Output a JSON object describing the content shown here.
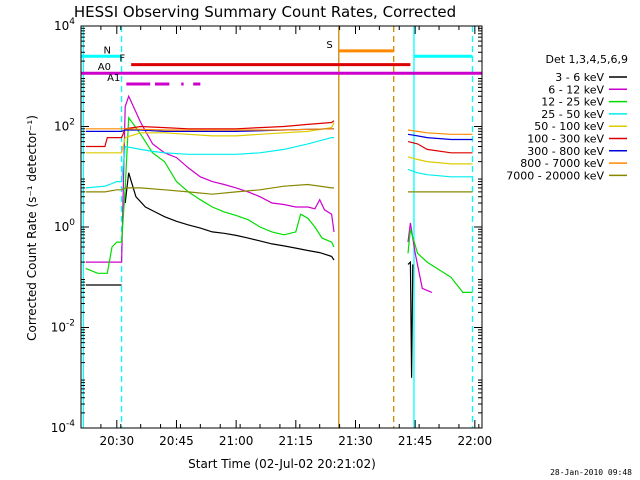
{
  "chart_data": {
    "type": "line",
    "title": "HESSI Observing Summary Count Rates, Corrected",
    "xlabel": "Start Time (02-Jul-02 20:21:02)",
    "ylabel": "Corrected Count Rate (s⁻¹ detector⁻¹)",
    "yscale": "log",
    "ylim": [
      0.0001,
      10000
    ],
    "xlim_minutes": [
      20.5,
      20.5,
      20.5,
      22.0
    ],
    "xlim": [
      20.35,
      22.03
    ],
    "x_unit": "hours UT",
    "x_ticks": [
      {
        "v": 20.5,
        "label": "20:30"
      },
      {
        "v": 20.75,
        "label": "20:45"
      },
      {
        "v": 21.0,
        "label": "21:00"
      },
      {
        "v": 21.25,
        "label": "21:15"
      },
      {
        "v": 21.5,
        "label": "21:30"
      },
      {
        "v": 21.75,
        "label": "21:45"
      },
      {
        "v": 22.0,
        "label": "22:00"
      }
    ],
    "y_ticks": [
      {
        "v": 0.0001,
        "base": "10",
        "exp": "-4"
      },
      {
        "v": 0.01,
        "base": "10",
        "exp": "-2"
      },
      {
        "v": 1,
        "base": "10",
        "exp": "0"
      },
      {
        "v": 100,
        "base": "10",
        "exp": "2"
      },
      {
        "v": 10000,
        "base": "10",
        "exp": "4"
      }
    ],
    "legend_title": "Det 1,3,4,5,6,9",
    "legend_position": "right",
    "series": [
      {
        "name": "3 - 6 keV",
        "color": "#000000",
        "points": [
          [
            20.37,
            0.07
          ],
          [
            20.45,
            0.07
          ],
          [
            20.46,
            0.07
          ],
          [
            20.5,
            0.07
          ],
          [
            20.52,
            0.07
          ],
          [
            20.535,
            3
          ],
          [
            20.55,
            12
          ],
          [
            20.58,
            4
          ],
          [
            20.62,
            2.5
          ],
          [
            20.66,
            2
          ],
          [
            20.7,
            1.6
          ],
          [
            20.75,
            1.3
          ],
          [
            20.8,
            1.1
          ],
          [
            20.85,
            0.95
          ],
          [
            20.9,
            0.8
          ],
          [
            20.95,
            0.75
          ],
          [
            21.0,
            0.68
          ],
          [
            21.05,
            0.6
          ],
          [
            21.1,
            0.53
          ],
          [
            21.15,
            0.46
          ],
          [
            21.2,
            0.42
          ],
          [
            21.25,
            0.38
          ],
          [
            21.3,
            0.34
          ],
          [
            21.35,
            0.31
          ],
          [
            21.4,
            0.26
          ],
          [
            21.41,
            0.22
          ],
          [
            21.72,
            0.18
          ],
          [
            21.73,
            0.2
          ],
          [
            21.735,
            0.001
          ],
          [
            21.74,
            0.18
          ]
        ],
        "gap_after": [
          20.52,
          21.41
        ]
      },
      {
        "name": "6 - 12 keV",
        "color": "#cc00cc",
        "points": [
          [
            20.37,
            0.2
          ],
          [
            20.45,
            0.2
          ],
          [
            20.5,
            0.2
          ],
          [
            20.52,
            0.2
          ],
          [
            20.535,
            250
          ],
          [
            20.55,
            400
          ],
          [
            20.6,
            120
          ],
          [
            20.65,
            45
          ],
          [
            20.7,
            30
          ],
          [
            20.75,
            24
          ],
          [
            20.8,
            15
          ],
          [
            20.85,
            10
          ],
          [
            20.9,
            8
          ],
          [
            20.95,
            7
          ],
          [
            21.0,
            6
          ],
          [
            21.05,
            5
          ],
          [
            21.1,
            4
          ],
          [
            21.15,
            3
          ],
          [
            21.2,
            2.8
          ],
          [
            21.25,
            2.5
          ],
          [
            21.3,
            2.5
          ],
          [
            21.33,
            2.3
          ],
          [
            21.35,
            3.5
          ],
          [
            21.37,
            2.2
          ],
          [
            21.4,
            1.8
          ],
          [
            21.41,
            0.8
          ],
          [
            21.72,
            0.5
          ],
          [
            21.73,
            1.2
          ],
          [
            21.75,
            0.3
          ],
          [
            21.78,
            0.06
          ],
          [
            21.82,
            0.05
          ]
        ],
        "gap_after": [
          21.41
        ]
      },
      {
        "name": "12 - 25 keV",
        "color": "#00dd00",
        "points": [
          [
            20.37,
            0.15
          ],
          [
            20.42,
            0.12
          ],
          [
            20.46,
            0.12
          ],
          [
            20.48,
            0.4
          ],
          [
            20.5,
            0.5
          ],
          [
            20.52,
            0.5
          ],
          [
            20.535,
            6
          ],
          [
            20.55,
            150
          ],
          [
            20.6,
            70
          ],
          [
            20.65,
            30
          ],
          [
            20.7,
            20
          ],
          [
            20.75,
            8
          ],
          [
            20.8,
            5
          ],
          [
            20.85,
            3.5
          ],
          [
            20.9,
            2.5
          ],
          [
            20.95,
            2
          ],
          [
            21.0,
            1.7
          ],
          [
            21.05,
            1.4
          ],
          [
            21.1,
            1.0
          ],
          [
            21.15,
            0.8
          ],
          [
            21.2,
            0.7
          ],
          [
            21.25,
            0.8
          ],
          [
            21.27,
            1.8
          ],
          [
            21.3,
            1.5
          ],
          [
            21.33,
            1.0
          ],
          [
            21.36,
            0.6
          ],
          [
            21.4,
            0.5
          ],
          [
            21.41,
            0.4
          ],
          [
            21.72,
            0.3
          ],
          [
            21.73,
            0.9
          ],
          [
            21.76,
            0.3
          ],
          [
            21.8,
            0.2
          ],
          [
            21.9,
            0.1
          ],
          [
            21.95,
            0.05
          ],
          [
            21.99,
            0.05
          ]
        ],
        "gap_after": [
          21.41
        ]
      },
      {
        "name": "25 - 50 keV",
        "color": "#00eeee",
        "points": [
          [
            20.37,
            6
          ],
          [
            20.45,
            6.5
          ],
          [
            20.47,
            7
          ],
          [
            20.5,
            8
          ],
          [
            20.52,
            8
          ],
          [
            20.535,
            40
          ],
          [
            20.6,
            35
          ],
          [
            20.65,
            32
          ],
          [
            20.7,
            30
          ],
          [
            20.8,
            28
          ],
          [
            20.9,
            28
          ],
          [
            21.0,
            28
          ],
          [
            21.1,
            30
          ],
          [
            21.2,
            35
          ],
          [
            21.3,
            45
          ],
          [
            21.4,
            60
          ],
          [
            21.41,
            60
          ],
          [
            21.72,
            14
          ],
          [
            21.76,
            12
          ],
          [
            21.8,
            11
          ],
          [
            21.9,
            10
          ],
          [
            21.99,
            10
          ]
        ],
        "gap_after": [
          21.41
        ]
      },
      {
        "name": "50 - 100 keV",
        "color": "#ddcc00",
        "points": [
          [
            20.37,
            30
          ],
          [
            20.45,
            30
          ],
          [
            20.5,
            30
          ],
          [
            20.52,
            30
          ],
          [
            20.535,
            60
          ],
          [
            20.6,
            75
          ],
          [
            20.7,
            75
          ],
          [
            20.8,
            70
          ],
          [
            20.9,
            65
          ],
          [
            21.0,
            65
          ],
          [
            21.1,
            70
          ],
          [
            21.2,
            75
          ],
          [
            21.3,
            80
          ],
          [
            21.4,
            95
          ],
          [
            21.41,
            120
          ],
          [
            21.72,
            25
          ],
          [
            21.76,
            22
          ],
          [
            21.8,
            20
          ],
          [
            21.9,
            18
          ],
          [
            21.99,
            18
          ]
        ],
        "gap_after": [
          21.41
        ]
      },
      {
        "name": "100 - 300 keV",
        "color": "#dd0000",
        "points": [
          [
            20.37,
            40
          ],
          [
            20.45,
            40
          ],
          [
            20.46,
            60
          ],
          [
            20.5,
            60
          ],
          [
            20.52,
            60
          ],
          [
            20.535,
            90
          ],
          [
            20.6,
            100
          ],
          [
            20.7,
            95
          ],
          [
            20.8,
            90
          ],
          [
            20.9,
            90
          ],
          [
            21.0,
            90
          ],
          [
            21.1,
            95
          ],
          [
            21.2,
            100
          ],
          [
            21.3,
            110
          ],
          [
            21.4,
            120
          ],
          [
            21.41,
            130
          ],
          [
            21.72,
            50
          ],
          [
            21.76,
            45
          ],
          [
            21.8,
            35
          ],
          [
            21.9,
            30
          ],
          [
            21.99,
            30
          ]
        ],
        "gap_after": [
          21.41
        ]
      },
      {
        "name": "300 - 800 keV",
        "color": "#0000dd",
        "points": [
          [
            20.37,
            80
          ],
          [
            20.45,
            80
          ],
          [
            20.5,
            80
          ],
          [
            20.52,
            80
          ],
          [
            20.535,
            85
          ],
          [
            20.6,
            85
          ],
          [
            20.7,
            80
          ],
          [
            20.8,
            80
          ],
          [
            20.9,
            80
          ],
          [
            21.0,
            80
          ],
          [
            21.1,
            82
          ],
          [
            21.2,
            85
          ],
          [
            21.3,
            88
          ],
          [
            21.4,
            90
          ],
          [
            21.41,
            90
          ],
          [
            21.72,
            70
          ],
          [
            21.76,
            65
          ],
          [
            21.8,
            60
          ],
          [
            21.9,
            55
          ],
          [
            21.99,
            55
          ]
        ],
        "gap_after": [
          21.41
        ]
      },
      {
        "name": "800 - 7000 keV",
        "color": "#ff8800",
        "points": [
          [
            20.37,
            90
          ],
          [
            20.45,
            90
          ],
          [
            20.5,
            90
          ],
          [
            20.52,
            90
          ],
          [
            20.535,
            90
          ],
          [
            20.6,
            88
          ],
          [
            20.7,
            85
          ],
          [
            20.8,
            85
          ],
          [
            20.9,
            85
          ],
          [
            21.0,
            85
          ],
          [
            21.1,
            85
          ],
          [
            21.2,
            85
          ],
          [
            21.3,
            88
          ],
          [
            21.4,
            90
          ],
          [
            21.41,
            90
          ],
          [
            21.72,
            85
          ],
          [
            21.76,
            80
          ],
          [
            21.8,
            75
          ],
          [
            21.9,
            70
          ],
          [
            21.99,
            70
          ]
        ],
        "gap_after": [
          21.41
        ]
      },
      {
        "name": "7000 - 20000 keV",
        "color": "#888800",
        "points": [
          [
            20.37,
            5
          ],
          [
            20.45,
            5
          ],
          [
            20.5,
            5.5
          ],
          [
            20.52,
            5.5
          ],
          [
            20.535,
            6
          ],
          [
            20.6,
            6
          ],
          [
            20.7,
            5.5
          ],
          [
            20.8,
            5
          ],
          [
            20.9,
            4.5
          ],
          [
            21.0,
            5
          ],
          [
            21.1,
            5.5
          ],
          [
            21.2,
            6.5
          ],
          [
            21.3,
            7
          ],
          [
            21.4,
            6
          ],
          [
            21.41,
            6
          ],
          [
            21.72,
            5
          ],
          [
            21.76,
            5
          ],
          [
            21.8,
            5
          ],
          [
            21.9,
            5
          ],
          [
            21.99,
            5
          ]
        ],
        "gap_after": [
          21.41
        ]
      }
    ],
    "markers": {
      "vertical_lines": [
        {
          "x": 20.36,
          "color": "#00ffff",
          "style": "solid"
        },
        {
          "x": 20.52,
          "color": "#00ffff",
          "style": "dashed"
        },
        {
          "x": 21.43,
          "color": "#cc8800",
          "style": "solid"
        },
        {
          "x": 21.66,
          "color": "#cc8800",
          "style": "dashed"
        },
        {
          "x": 21.745,
          "color": "#00ffff",
          "style": "solid"
        },
        {
          "x": 21.99,
          "color": "#00ffff",
          "style": "dashed"
        }
      ],
      "flag_bars": [
        {
          "label": "N",
          "color": "#00ffff",
          "y": 2500,
          "segments": [
            [
              20.35,
              20.52
            ],
            [
              21.745,
              21.99
            ]
          ]
        },
        {
          "label": "S",
          "color": "#ff8800",
          "y": 3200,
          "segments": [
            [
              21.43,
              21.66
            ]
          ]
        },
        {
          "label": "F",
          "color": "#dd0000",
          "y": 1700,
          "segments": [
            [
              20.56,
              21.73
            ]
          ]
        },
        {
          "label": "A0",
          "color": "#cc00cc",
          "y": 1150,
          "segments": [
            [
              20.35,
              22.03
            ]
          ]
        },
        {
          "label": "A1",
          "color": "#cc00cc",
          "y": 700,
          "segments": [
            [
              20.54,
              20.64
            ],
            [
              20.66,
              20.72
            ],
            [
              20.77,
              20.78
            ],
            [
              20.82,
              20.85
            ]
          ]
        }
      ]
    }
  },
  "timestamp": "28-Jan-2010 09:48"
}
